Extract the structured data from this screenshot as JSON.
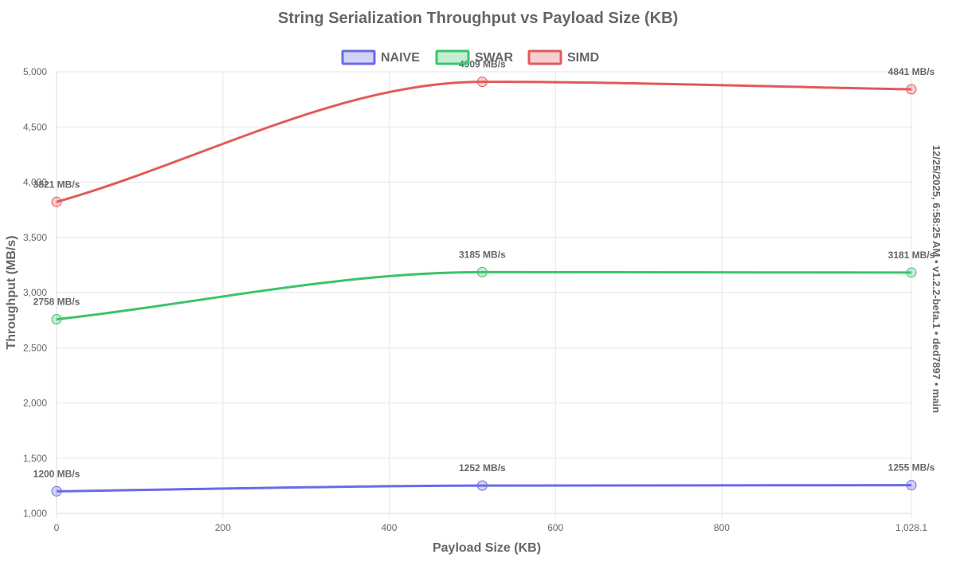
{
  "chart_data": {
    "type": "line",
    "title": "String Serialization Throughput vs Payload Size (KB)",
    "xlabel": "Payload Size (KB)",
    "ylabel": "Throughput (MB/s)",
    "side_note": "12/25/2025, 6:58:25 AM • v1.2.2-beta.1 • ded7897 • main",
    "xlim": [
      0,
      1028.1
    ],
    "ylim": [
      1000,
      5000
    ],
    "x_ticks": [
      0,
      200,
      400,
      600,
      800,
      1028.1
    ],
    "x_tick_labels": [
      "0",
      "200",
      "400",
      "600",
      "800",
      "1,028.1"
    ],
    "y_ticks": [
      1000,
      1500,
      2000,
      2500,
      3000,
      3500,
      4000,
      4500,
      5000
    ],
    "y_tick_labels": [
      "1,000",
      "1,500",
      "2,000",
      "2,500",
      "3,000",
      "3,500",
      "4,000",
      "4,500",
      "5,000"
    ],
    "grid": true,
    "legend_position": "top-center",
    "x": [
      0,
      512,
      1028.1
    ],
    "series": [
      {
        "name": "NAIVE",
        "values": [
          1200,
          1252,
          1255
        ],
        "labels": [
          "1200 MB/s",
          "1252 MB/s",
          "1255 MB/s"
        ],
        "color": "#6b6be8",
        "fill": "rgba(107,107,232,0.3)"
      },
      {
        "name": "SWAR",
        "values": [
          2758,
          3185,
          3181
        ],
        "labels": [
          "2758 MB/s",
          "3185 MB/s",
          "3181 MB/s"
        ],
        "color": "#3cc46a",
        "fill": "rgba(60,196,106,0.3)"
      },
      {
        "name": "SIMD",
        "values": [
          3821,
          4909,
          4841
        ],
        "labels": [
          "3821 MB/s",
          "4909 MB/s",
          "4841 MB/s"
        ],
        "color": "#e35a5a",
        "fill": "rgba(227,90,90,0.3)"
      }
    ]
  }
}
